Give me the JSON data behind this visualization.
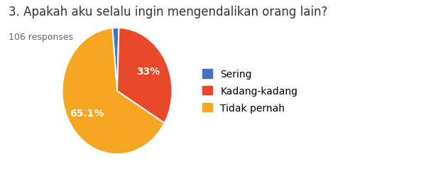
{
  "title": "3. Apakah aku selalu ingin mengendalikan orang lain?",
  "subtitle": "106 responses",
  "slices": [
    {
      "label": "Sering",
      "percentage": 1.9,
      "color": "#4472c4"
    },
    {
      "label": "Kadang-kadang",
      "percentage": 33.0,
      "color": "#e8472a"
    },
    {
      "label": "Tidak pernah",
      "percentage": 65.1,
      "color": "#f5a623"
    }
  ],
  "title_fontsize": 12,
  "subtitle_fontsize": 9,
  "label_fontsize": 10,
  "legend_fontsize": 10,
  "background_color": "#ffffff"
}
